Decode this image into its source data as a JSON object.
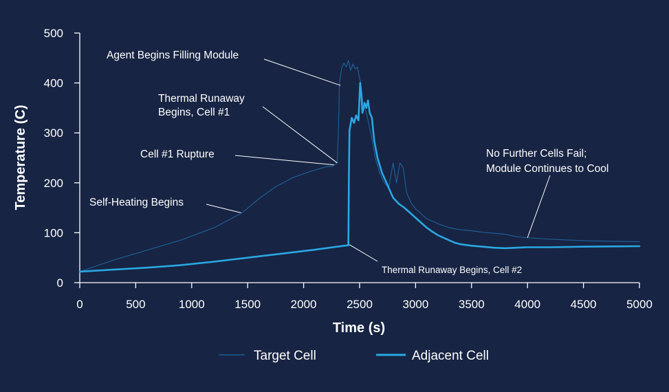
{
  "chart_data": {
    "type": "line",
    "xlabel": "Time (s)",
    "ylabel": "Temperature (C)",
    "xlim": [
      0,
      5000
    ],
    "ylim": [
      0,
      500
    ],
    "xticks": [
      0,
      500,
      1000,
      1500,
      2000,
      2500,
      3000,
      3500,
      4000,
      4500,
      5000
    ],
    "yticks": [
      0,
      100,
      200,
      300,
      400,
      500
    ],
    "grid": false,
    "legend_position": "bottom",
    "series": [
      {
        "name": "Target Cell",
        "color": "#1f5e96",
        "points": [
          [
            0,
            22
          ],
          [
            300,
            45
          ],
          [
            600,
            65
          ],
          [
            900,
            85
          ],
          [
            1200,
            110
          ],
          [
            1450,
            140
          ],
          [
            1600,
            168
          ],
          [
            1750,
            192
          ],
          [
            1900,
            210
          ],
          [
            2050,
            222
          ],
          [
            2200,
            232
          ],
          [
            2260,
            233
          ],
          [
            2300,
            240
          ],
          [
            2310,
            300
          ],
          [
            2320,
            400
          ],
          [
            2340,
            430
          ],
          [
            2360,
            440
          ],
          [
            2380,
            432
          ],
          [
            2400,
            445
          ],
          [
            2420,
            425
          ],
          [
            2440,
            438
          ],
          [
            2460,
            428
          ],
          [
            2480,
            432
          ],
          [
            2490,
            420
          ],
          [
            2510,
            400
          ],
          [
            2530,
            360
          ],
          [
            2560,
            340
          ],
          [
            2600,
            300
          ],
          [
            2640,
            250
          ],
          [
            2680,
            220
          ],
          [
            2720,
            200
          ],
          [
            2760,
            190
          ],
          [
            2800,
            240
          ],
          [
            2830,
            200
          ],
          [
            2860,
            240
          ],
          [
            2890,
            230
          ],
          [
            2920,
            180
          ],
          [
            2960,
            160
          ],
          [
            3000,
            148
          ],
          [
            3050,
            138
          ],
          [
            3100,
            128
          ],
          [
            3200,
            118
          ],
          [
            3300,
            110
          ],
          [
            3400,
            106
          ],
          [
            3500,
            104
          ],
          [
            3600,
            101
          ],
          [
            3700,
            99
          ],
          [
            3800,
            97
          ],
          [
            3900,
            92
          ],
          [
            4000,
            90
          ],
          [
            4200,
            87
          ],
          [
            4500,
            84
          ],
          [
            5000,
            82
          ]
        ]
      },
      {
        "name": "Adjacent Cell",
        "color": "#2aa8e2",
        "points": [
          [
            0,
            22
          ],
          [
            300,
            26
          ],
          [
            600,
            30
          ],
          [
            900,
            35
          ],
          [
            1200,
            42
          ],
          [
            1500,
            50
          ],
          [
            1800,
            58
          ],
          [
            2100,
            66
          ],
          [
            2300,
            72
          ],
          [
            2400,
            75
          ],
          [
            2405,
            220
          ],
          [
            2410,
            305
          ],
          [
            2430,
            330
          ],
          [
            2450,
            320
          ],
          [
            2470,
            335
          ],
          [
            2490,
            325
          ],
          [
            2505,
            400
          ],
          [
            2515,
            380
          ],
          [
            2525,
            340
          ],
          [
            2545,
            360
          ],
          [
            2560,
            350
          ],
          [
            2575,
            365
          ],
          [
            2590,
            340
          ],
          [
            2610,
            330
          ],
          [
            2630,
            285
          ],
          [
            2660,
            250
          ],
          [
            2700,
            220
          ],
          [
            2750,
            195
          ],
          [
            2800,
            170
          ],
          [
            2850,
            158
          ],
          [
            2900,
            150
          ],
          [
            2950,
            140
          ],
          [
            3000,
            130
          ],
          [
            3050,
            120
          ],
          [
            3100,
            110
          ],
          [
            3150,
            102
          ],
          [
            3200,
            95
          ],
          [
            3250,
            90
          ],
          [
            3300,
            85
          ],
          [
            3350,
            80
          ],
          [
            3400,
            77
          ],
          [
            3500,
            74
          ],
          [
            3600,
            72
          ],
          [
            3700,
            70
          ],
          [
            3800,
            69
          ],
          [
            3900,
            70
          ],
          [
            4000,
            71
          ],
          [
            4200,
            71
          ],
          [
            4500,
            72
          ],
          [
            5000,
            73
          ]
        ]
      }
    ],
    "annotations": [
      {
        "lines": [
          "Agent Begins Filling Module"
        ],
        "target": [
          2330,
          395
        ]
      },
      {
        "lines": [
          "Thermal Runaway",
          "Begins, Cell #1"
        ],
        "target": [
          2300,
          240
        ]
      },
      {
        "lines": [
          "Cell #1 Rupture"
        ],
        "target": [
          2270,
          236
        ]
      },
      {
        "lines": [
          "Self-Heating Begins"
        ],
        "target": [
          1440,
          140
        ]
      },
      {
        "lines": [
          "No Further Cells Fail;",
          "Module Continues to Cool"
        ],
        "target": [
          4000,
          90
        ]
      },
      {
        "lines": [
          "Thermal Runaway Begins, Cell #2"
        ],
        "target": [
          2410,
          76
        ]
      }
    ]
  }
}
